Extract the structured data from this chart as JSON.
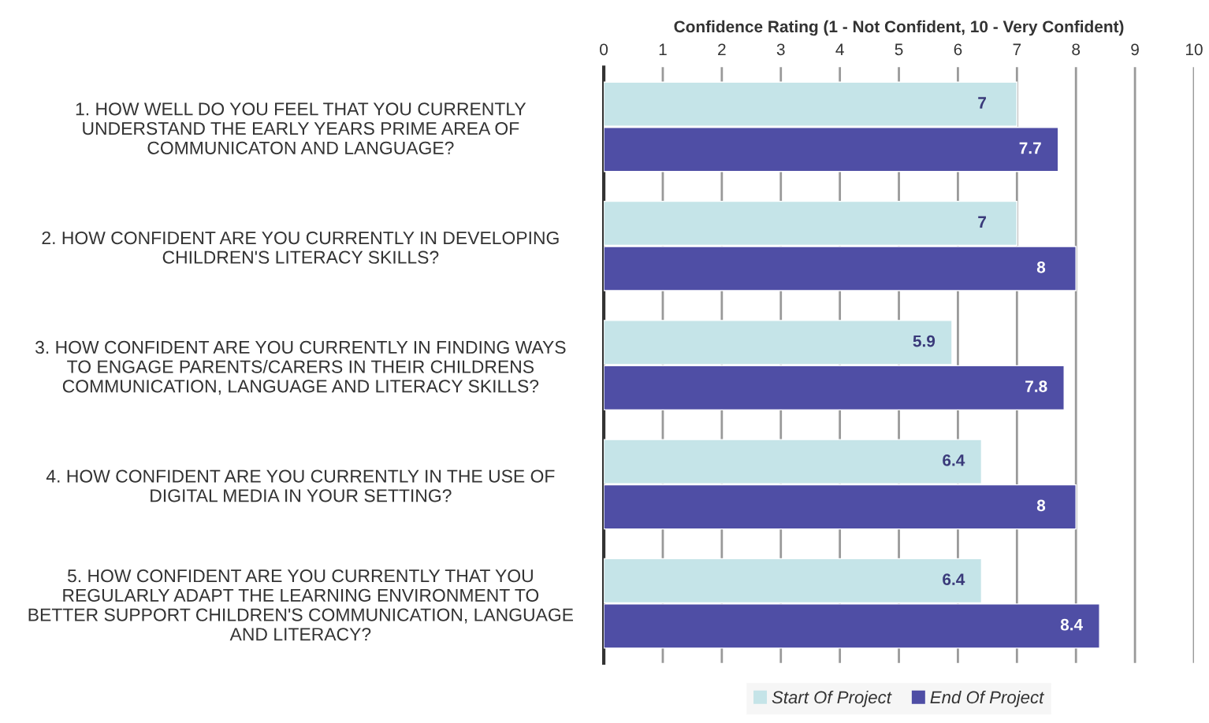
{
  "chart_data": {
    "type": "bar",
    "orientation": "horizontal",
    "xlabel": "Confidence Rating (1 - Not Confident, 10 - Very Confident)",
    "categories": [
      "1. HOW WELL DO YOU FEEL THAT YOU CURRENTLY\nUNDERSTAND THE EARLY YEARS PRIME AREA OF\nCOMMUNICATON AND LANGUAGE?",
      "2. HOW CONFIDENT ARE YOU CURRENTLY IN DEVELOPING\nCHILDREN'S LITERACY SKILLS?",
      "3. HOW CONFIDENT ARE YOU CURRENTLY IN FINDING WAYS\nTO ENGAGE PARENTS/CARERS IN THEIR CHILDRENS\nCOMMUNICATION, LANGUAGE AND LITERACY SKILLS?",
      "4. HOW CONFIDENT ARE YOU CURRENTLY IN THE USE OF\nDIGITAL MEDIA IN YOUR SETTING?",
      "5. HOW CONFIDENT ARE YOU CURRENTLY THAT YOU\nREGULARLY ADAPT THE LEARNING ENVIRONMENT TO\nBETTER SUPPORT CHILDREN'S COMMUNICATION, LANGUAGE\nAND LITERACY?"
    ],
    "series": [
      {
        "name": "Start Of Project",
        "color": "#c5e4e8",
        "values": [
          7,
          7,
          5.9,
          6.4,
          6.4
        ]
      },
      {
        "name": "End Of Project",
        "color": "#4f4ea5",
        "values": [
          7.7,
          8,
          7.8,
          8,
          8.4
        ]
      }
    ],
    "xlim": [
      0,
      10
    ],
    "xticks": [
      0,
      1,
      2,
      3,
      4,
      5,
      6,
      7,
      8,
      9,
      10
    ],
    "grid": "x",
    "legend": "bottom",
    "data_labels": true
  }
}
